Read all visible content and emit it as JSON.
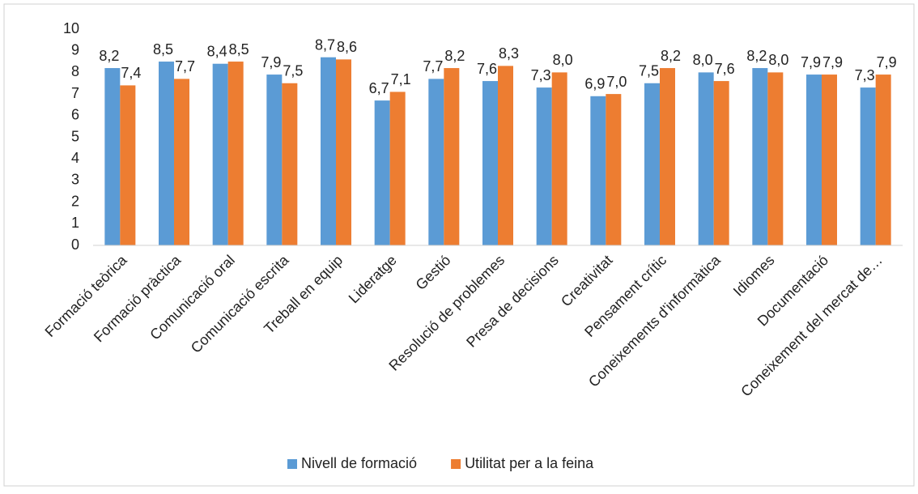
{
  "chart_data": {
    "type": "bar",
    "categories": [
      "Formació teòrica",
      "Formació pràctica",
      "Comunicació oral",
      "Comunicació escrita",
      "Treball en equip",
      "Lideratge",
      "Gestió",
      "Resolució de problemes",
      "Presa de decisions",
      "Creativitat",
      "Pensament crític",
      "Coneixements d'informàtica",
      "Idiomes",
      "Documentació",
      "Coneixement del mercat de…"
    ],
    "series": [
      {
        "name": "Nivell de formació",
        "color": "#5b9bd5",
        "values": [
          8.2,
          8.5,
          8.4,
          7.9,
          8.7,
          6.7,
          7.7,
          7.6,
          7.3,
          6.9,
          7.5,
          8.0,
          8.2,
          7.9,
          7.3
        ],
        "value_labels": [
          "8,2",
          "8,5",
          "8,4",
          "7,9",
          "8,7",
          "6,7",
          "7,7",
          "7,6",
          "7,3",
          "6,9",
          "7,5",
          "8,0",
          "8,2",
          "7,9",
          "7,3"
        ]
      },
      {
        "name": "Utilitat per a la feina",
        "color": "#ed7d31",
        "values": [
          7.4,
          7.7,
          8.5,
          7.5,
          8.6,
          7.1,
          8.2,
          8.3,
          8.0,
          7.0,
          8.2,
          7.6,
          8.0,
          7.9,
          7.9
        ],
        "value_labels": [
          "7,4",
          "7,7",
          "8,5",
          "7,5",
          "8,6",
          "7,1",
          "8,2",
          "8,3",
          "8,0",
          "7,0",
          "8,2",
          "7,6",
          "8,0",
          "7,9",
          "7,9"
        ]
      }
    ],
    "ylim": [
      0,
      10
    ],
    "yticks": [
      0,
      1,
      2,
      3,
      4,
      5,
      6,
      7,
      8,
      9,
      10
    ],
    "grid": false,
    "legend": "bottom"
  }
}
